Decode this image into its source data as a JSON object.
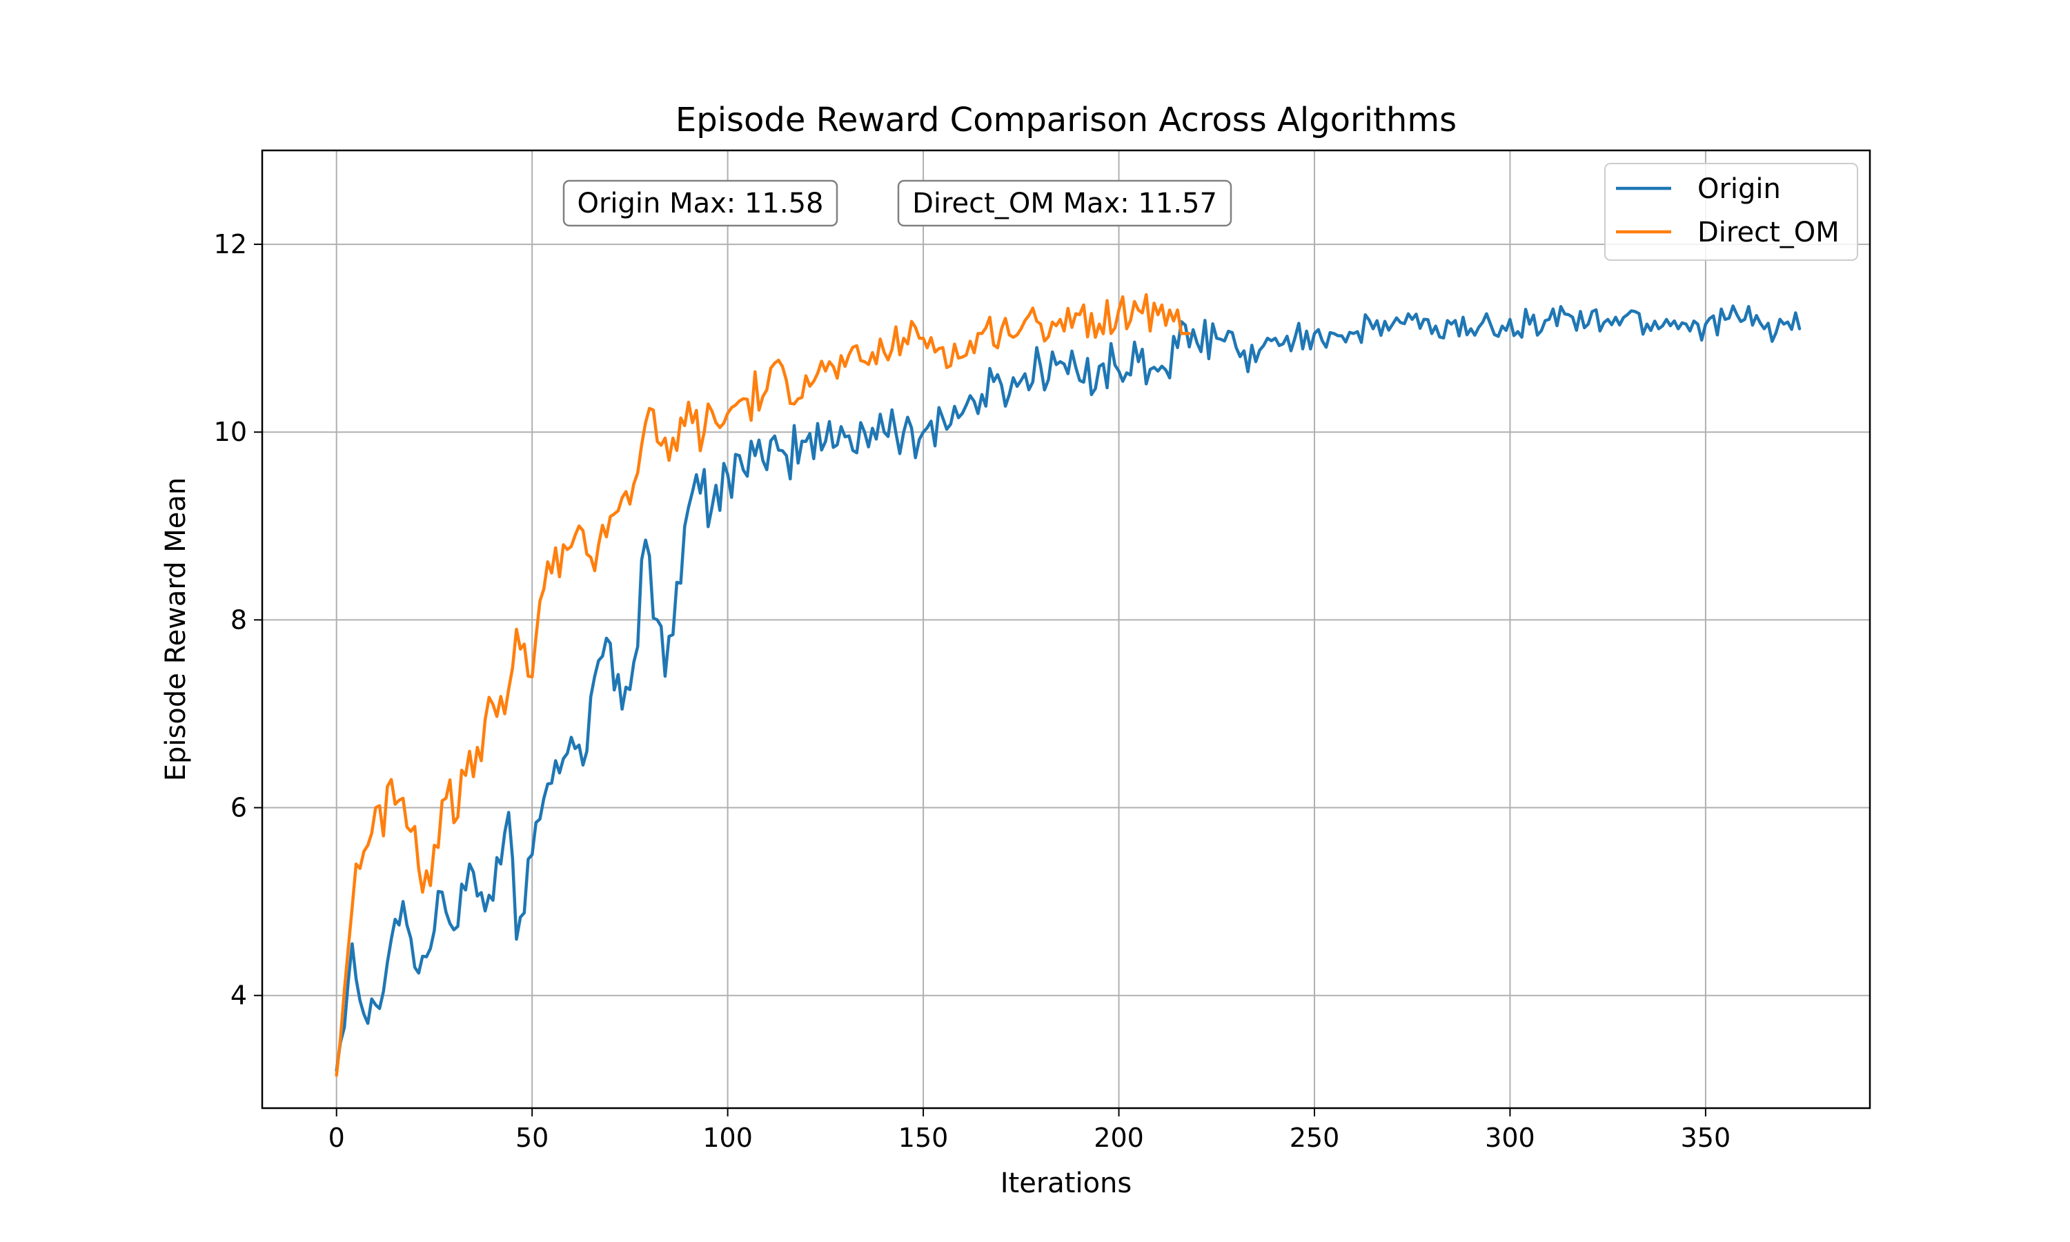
{
  "chart_data": {
    "type": "line",
    "title": "Episode Reward Comparison Across Algorithms",
    "xlabel": "Iterations",
    "ylabel": "Episode Reward Mean",
    "xlim": [
      -19,
      392
    ],
    "ylim": [
      2.8,
      13.0
    ],
    "xticks": [
      0,
      50,
      100,
      150,
      200,
      250,
      300,
      350
    ],
    "yticks": [
      4,
      6,
      8,
      10,
      12
    ],
    "grid": true,
    "legend_position": "top-right",
    "annotations": [
      {
        "label": "Origin Max: 11.58",
        "series": "Origin",
        "value": 11.58
      },
      {
        "label": "Direct_OM Max: 11.57",
        "series": "Direct_OM",
        "value": 11.57
      }
    ],
    "series": [
      {
        "name": "Origin",
        "color": "#1f77b4",
        "key_points": [
          [
            0,
            3.2
          ],
          [
            4,
            4.55
          ],
          [
            7,
            3.8
          ],
          [
            10,
            3.9
          ],
          [
            14,
            4.6
          ],
          [
            17,
            5.0
          ],
          [
            20,
            4.3
          ],
          [
            24,
            4.5
          ],
          [
            27,
            5.1
          ],
          [
            30,
            4.7
          ],
          [
            34,
            5.4
          ],
          [
            38,
            4.9
          ],
          [
            42,
            5.4
          ],
          [
            44,
            5.95
          ],
          [
            46,
            4.6
          ],
          [
            50,
            5.5
          ],
          [
            53,
            6.1
          ],
          [
            56,
            6.5
          ],
          [
            60,
            6.75
          ],
          [
            64,
            6.6
          ],
          [
            66,
            7.4
          ],
          [
            70,
            7.75
          ],
          [
            73,
            7.05
          ],
          [
            76,
            7.55
          ],
          [
            79,
            8.85
          ],
          [
            82,
            8.0
          ],
          [
            84,
            7.4
          ],
          [
            87,
            8.4
          ],
          [
            90,
            9.2
          ],
          [
            93,
            9.35
          ],
          [
            96,
            9.2
          ],
          [
            100,
            9.55
          ],
          [
            103,
            9.75
          ],
          [
            107,
            9.75
          ],
          [
            110,
            9.6
          ],
          [
            115,
            9.75
          ],
          [
            120,
            9.9
          ],
          [
            125,
            9.9
          ],
          [
            130,
            9.95
          ],
          [
            135,
            10.0
          ],
          [
            140,
            10.0
          ],
          [
            145,
            10.0
          ],
          [
            150,
            10.0
          ],
          [
            155,
            10.15
          ],
          [
            160,
            10.2
          ],
          [
            165,
            10.4
          ],
          [
            170,
            10.5
          ],
          [
            175,
            10.55
          ],
          [
            180,
            10.7
          ],
          [
            185,
            10.75
          ],
          [
            190,
            10.55
          ],
          [
            195,
            10.7
          ],
          [
            200,
            10.65
          ],
          [
            205,
            10.75
          ],
          [
            210,
            10.65
          ],
          [
            215,
            10.9
          ],
          [
            220,
            10.95
          ],
          [
            225,
            11.0
          ],
          [
            230,
            10.9
          ],
          [
            235,
            10.75
          ],
          [
            240,
            11.0
          ],
          [
            245,
            11.0
          ],
          [
            250,
            11.05
          ],
          [
            255,
            11.05
          ],
          [
            260,
            11.05
          ],
          [
            265,
            11.1
          ],
          [
            270,
            11.15
          ],
          [
            275,
            11.2
          ],
          [
            280,
            11.05
          ],
          [
            285,
            11.15
          ],
          [
            290,
            11.1
          ],
          [
            295,
            11.15
          ],
          [
            300,
            11.2
          ],
          [
            305,
            11.15
          ],
          [
            310,
            11.2
          ],
          [
            315,
            11.25
          ],
          [
            320,
            11.15
          ],
          [
            325,
            11.2
          ],
          [
            330,
            11.25
          ],
          [
            335,
            11.15
          ],
          [
            340,
            11.2
          ],
          [
            345,
            11.15
          ],
          [
            350,
            11.15
          ],
          [
            355,
            11.2
          ],
          [
            360,
            11.2
          ],
          [
            365,
            11.1
          ],
          [
            370,
            11.15
          ],
          [
            374,
            11.1
          ]
        ]
      },
      {
        "name": "Direct_OM",
        "color": "#ff7f0e",
        "key_points": [
          [
            0,
            3.15
          ],
          [
            3,
            4.5
          ],
          [
            5,
            5.4
          ],
          [
            8,
            5.6
          ],
          [
            10,
            6.0
          ],
          [
            12,
            5.7
          ],
          [
            14,
            6.3
          ],
          [
            17,
            6.1
          ],
          [
            20,
            5.8
          ],
          [
            22,
            5.1
          ],
          [
            25,
            5.6
          ],
          [
            28,
            6.1
          ],
          [
            31,
            5.9
          ],
          [
            34,
            6.6
          ],
          [
            37,
            6.5
          ],
          [
            40,
            7.1
          ],
          [
            43,
            7.0
          ],
          [
            46,
            7.9
          ],
          [
            49,
            7.4
          ],
          [
            52,
            8.2
          ],
          [
            55,
            8.5
          ],
          [
            58,
            8.8
          ],
          [
            61,
            8.9
          ],
          [
            64,
            8.7
          ],
          [
            67,
            8.8
          ],
          [
            70,
            9.1
          ],
          [
            73,
            9.3
          ],
          [
            76,
            9.45
          ],
          [
            79,
            10.1
          ],
          [
            82,
            9.9
          ],
          [
            85,
            9.7
          ],
          [
            88,
            10.15
          ],
          [
            91,
            10.1
          ],
          [
            94,
            10.0
          ],
          [
            97,
            10.1
          ],
          [
            100,
            10.2
          ],
          [
            105,
            10.35
          ],
          [
            110,
            10.45
          ],
          [
            115,
            10.55
          ],
          [
            120,
            10.6
          ],
          [
            125,
            10.65
          ],
          [
            130,
            10.7
          ],
          [
            135,
            10.75
          ],
          [
            140,
            10.85
          ],
          [
            145,
            11.0
          ],
          [
            150,
            11.0
          ],
          [
            155,
            10.9
          ],
          [
            160,
            10.8
          ],
          [
            165,
            11.05
          ],
          [
            170,
            11.1
          ],
          [
            175,
            11.1
          ],
          [
            180,
            11.15
          ],
          [
            185,
            11.2
          ],
          [
            190,
            11.25
          ],
          [
            195,
            11.15
          ],
          [
            200,
            11.3
          ],
          [
            205,
            11.3
          ],
          [
            210,
            11.25
          ],
          [
            213,
            11.3
          ],
          [
            216,
            11.05
          ],
          [
            218,
            11.05
          ]
        ]
      }
    ]
  }
}
